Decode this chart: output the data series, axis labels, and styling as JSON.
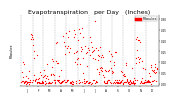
{
  "title": "Evapotranspiration   per Day   (Inches)",
  "title_fontsize": 4.5,
  "background_color": "#ffffff",
  "plot_bg_color": "#ffffff",
  "dot_color": "#ff0000",
  "grid_color": "#888888",
  "yticks": [
    0.0,
    0.05,
    0.1,
    0.15,
    0.2,
    0.25,
    0.3
  ],
  "ylim": [
    -0.01,
    0.32
  ],
  "xlim": [
    -3,
    368
  ],
  "num_points": 365,
  "legend_label": "Milwaukee",
  "legend_color": "#ff0000",
  "month_starts": [
    0,
    31,
    59,
    90,
    120,
    151,
    181,
    212,
    243,
    273,
    304,
    334
  ],
  "month_centers": [
    15,
    45,
    74,
    105,
    135,
    166,
    196,
    227,
    258,
    288,
    319,
    349
  ],
  "month_labels": [
    "J",
    "F",
    "M",
    "A",
    "M",
    "J",
    "J",
    "A",
    "S",
    "O",
    "N",
    "D"
  ],
  "dot_size": 0.8,
  "seed": 12
}
